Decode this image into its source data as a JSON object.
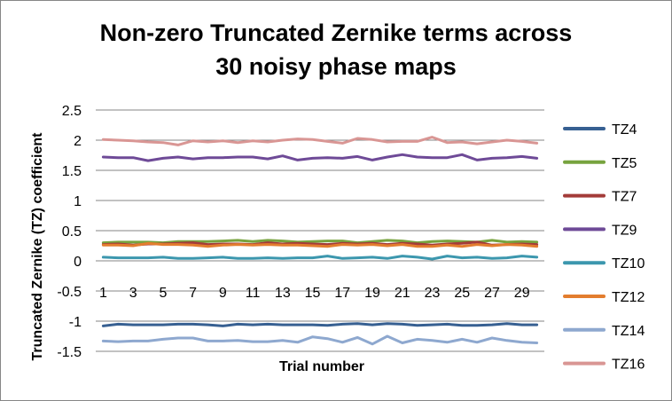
{
  "chart_data": {
    "type": "line",
    "title_lines": [
      "Non-zero Truncated Zernike terms across",
      "30 noisy phase maps"
    ],
    "xlabel": "Trial number",
    "ylabel": "Truncated Zernike (TZ)  coefficient",
    "ylim": [
      -1.5,
      2.5
    ],
    "y_ticks": [
      "2.5",
      "2",
      "1.5",
      "1",
      "0.5",
      "0",
      "-0.5",
      "-1",
      "-1.5"
    ],
    "x_tick_labels": [
      "1",
      "3",
      "5",
      "7",
      "9",
      "11",
      "13",
      "15",
      "17",
      "19",
      "21",
      "23",
      "25",
      "27",
      "29"
    ],
    "x": [
      1,
      2,
      3,
      4,
      5,
      6,
      7,
      8,
      9,
      10,
      11,
      12,
      13,
      14,
      15,
      16,
      17,
      18,
      19,
      20,
      21,
      22,
      23,
      24,
      25,
      26,
      27,
      28,
      29,
      30
    ],
    "grid": "horizontal major gridlines",
    "legend_position": "right",
    "series": [
      {
        "name": "TZ4",
        "color": "#376092",
        "values": [
          -1.08,
          -1.05,
          -1.06,
          -1.06,
          -1.06,
          -1.05,
          -1.05,
          -1.06,
          -1.08,
          -1.05,
          -1.06,
          -1.05,
          -1.06,
          -1.06,
          -1.06,
          -1.07,
          -1.05,
          -1.04,
          -1.06,
          -1.04,
          -1.05,
          -1.07,
          -1.06,
          -1.05,
          -1.07,
          -1.07,
          -1.06,
          -1.04,
          -1.06,
          -1.06
        ]
      },
      {
        "name": "TZ5",
        "color": "#77A33E",
        "values": [
          0.3,
          0.31,
          0.31,
          0.31,
          0.3,
          0.32,
          0.32,
          0.32,
          0.33,
          0.34,
          0.32,
          0.34,
          0.33,
          0.31,
          0.32,
          0.33,
          0.33,
          0.3,
          0.32,
          0.34,
          0.33,
          0.3,
          0.32,
          0.33,
          0.32,
          0.31,
          0.34,
          0.31,
          0.32,
          0.31
        ]
      },
      {
        "name": "TZ7",
        "color": "#A33B39",
        "values": [
          0.27,
          0.28,
          0.26,
          0.28,
          0.28,
          0.29,
          0.3,
          0.27,
          0.28,
          0.28,
          0.27,
          0.3,
          0.28,
          0.29,
          0.28,
          0.27,
          0.29,
          0.28,
          0.29,
          0.27,
          0.29,
          0.28,
          0.26,
          0.28,
          0.29,
          0.31,
          0.26,
          0.27,
          0.28,
          0.27
        ]
      },
      {
        "name": "TZ9",
        "color": "#6E4A97",
        "values": [
          1.72,
          1.71,
          1.71,
          1.66,
          1.7,
          1.72,
          1.69,
          1.71,
          1.71,
          1.72,
          1.72,
          1.69,
          1.74,
          1.67,
          1.7,
          1.71,
          1.7,
          1.73,
          1.67,
          1.72,
          1.76,
          1.72,
          1.71,
          1.71,
          1.76,
          1.67,
          1.7,
          1.71,
          1.73,
          1.7
        ]
      },
      {
        "name": "TZ10",
        "color": "#3C97AE",
        "values": [
          0.06,
          0.05,
          0.05,
          0.05,
          0.06,
          0.04,
          0.04,
          0.05,
          0.06,
          0.04,
          0.04,
          0.05,
          0.04,
          0.05,
          0.05,
          0.08,
          0.04,
          0.05,
          0.06,
          0.04,
          0.08,
          0.06,
          0.03,
          0.08,
          0.05,
          0.06,
          0.04,
          0.05,
          0.08,
          0.06
        ]
      },
      {
        "name": "TZ12",
        "color": "#E37D2E",
        "values": [
          0.26,
          0.26,
          0.25,
          0.29,
          0.27,
          0.27,
          0.26,
          0.24,
          0.26,
          0.27,
          0.26,
          0.27,
          0.26,
          0.26,
          0.25,
          0.24,
          0.27,
          0.26,
          0.27,
          0.25,
          0.27,
          0.24,
          0.24,
          0.26,
          0.24,
          0.27,
          0.25,
          0.27,
          0.26,
          0.24
        ]
      },
      {
        "name": "TZ14",
        "color": "#8EA8CF",
        "values": [
          -1.33,
          -1.34,
          -1.33,
          -1.33,
          -1.3,
          -1.28,
          -1.28,
          -1.33,
          -1.33,
          -1.32,
          -1.34,
          -1.34,
          -1.32,
          -1.35,
          -1.26,
          -1.29,
          -1.35,
          -1.27,
          -1.38,
          -1.25,
          -1.36,
          -1.3,
          -1.32,
          -1.35,
          -1.3,
          -1.35,
          -1.28,
          -1.32,
          -1.35,
          -1.36
        ]
      },
      {
        "name": "TZ16",
        "color": "#D99694",
        "values": [
          2.01,
          2.0,
          1.99,
          1.97,
          1.96,
          1.92,
          1.99,
          1.97,
          1.99,
          1.96,
          1.99,
          1.97,
          2.0,
          2.02,
          2.01,
          1.98,
          1.95,
          2.03,
          2.01,
          1.97,
          1.98,
          1.98,
          2.05,
          1.96,
          1.97,
          1.94,
          1.97,
          2.0,
          1.98,
          1.95
        ]
      }
    ]
  }
}
